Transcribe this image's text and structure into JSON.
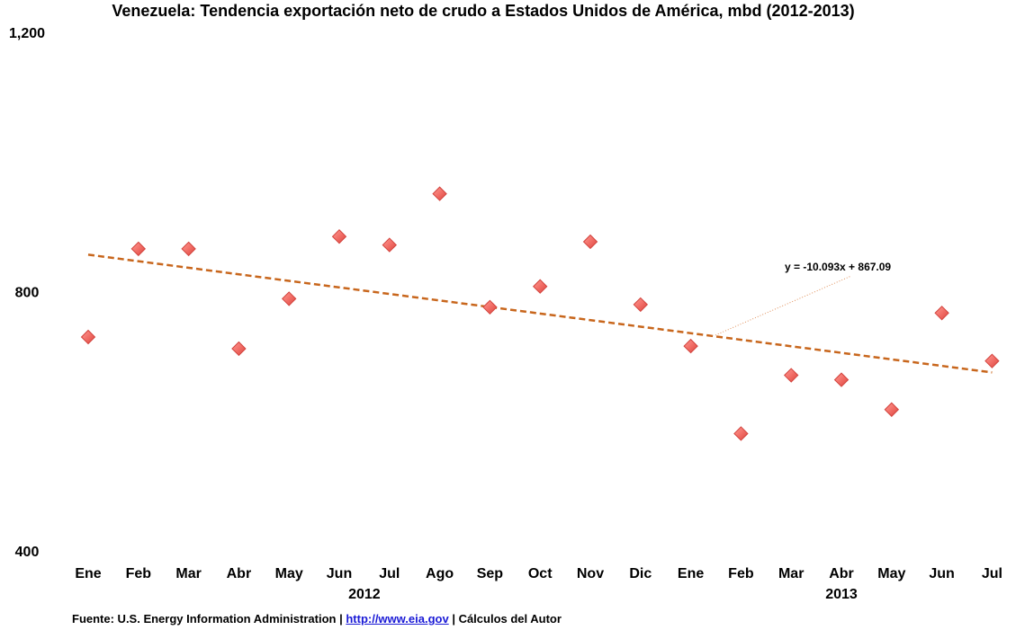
{
  "chart_data": {
    "type": "scatter",
    "title": "Venezuela: Tendencia exportación neto de crudo a Estados Unidos de América, mbd (2012-2013)",
    "xlabel": "",
    "ylabel": "",
    "categories": [
      "Ene",
      "Feb",
      "Mar",
      "Abr",
      "May",
      "Jun",
      "Jul",
      "Ago",
      "Sep",
      "Oct",
      "Nov",
      "Dic",
      "Ene",
      "Feb",
      "Mar",
      "Abr",
      "May",
      "Jun",
      "Jul"
    ],
    "year_groups": [
      {
        "label": "2012",
        "start": 0,
        "end": 11
      },
      {
        "label": "2013",
        "start": 12,
        "end": 18
      }
    ],
    "series": [
      {
        "values": [
          730,
          866,
          866,
          712,
          789,
          885,
          872,
          951,
          776,
          808,
          877,
          780,
          716,
          581,
          671,
          664,
          618,
          767,
          693
        ],
        "marker": "diamond",
        "color": "#e8524f"
      }
    ],
    "trendline": {
      "equation": "y = -10.093x + 867.09",
      "slope": -10.093,
      "intercept": 867.09,
      "color": "#c8661c",
      "style": "dashed"
    },
    "ylim": [
      400,
      1200
    ],
    "yticks": [
      "400",
      "800",
      "1,200"
    ],
    "ytick_values": [
      400,
      800,
      1200
    ],
    "grid": false,
    "legend": "none"
  },
  "source": {
    "prefix": "Fuente:  U.S. Energy Information Administration  | ",
    "link": "http://www.eia.gov",
    "suffix": " | Cálculos del Autor"
  },
  "colors": {
    "marker_fill": "#f06a63",
    "marker_stroke": "#d2423c",
    "trend": "#c8661c",
    "leader": "#e0905a"
  }
}
